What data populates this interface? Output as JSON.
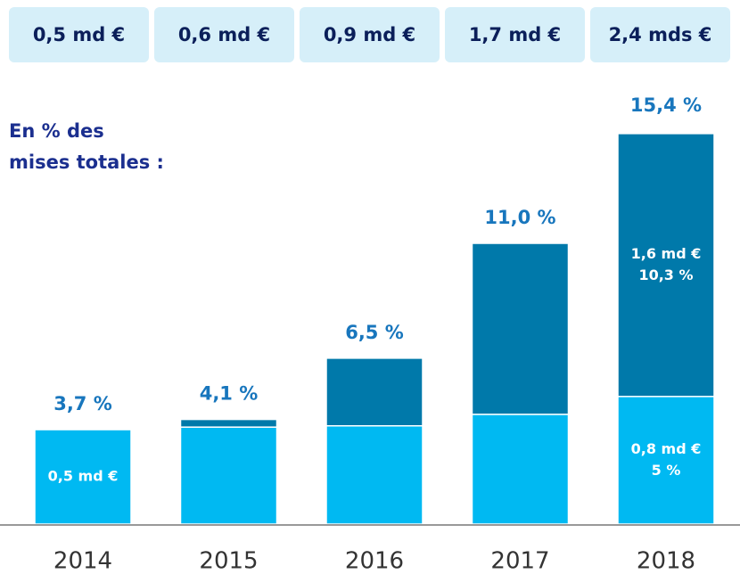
{
  "chart_data": {
    "type": "bar",
    "stacked": true,
    "annotations": [
      "En % des",
      "mises totales :"
    ],
    "amounts": [
      "0,5 md €",
      "0,6 md €",
      "0,9 md €",
      "1,7 md €",
      "2,4 mds €"
    ],
    "categories": [
      "2014",
      "2015",
      "2016",
      "2017",
      "2018"
    ],
    "totals": {
      "values": [
        3.7,
        4.1,
        6.5,
        11.0,
        15.4
      ],
      "value_labels": [
        "3,7 %",
        "4,1 %",
        "6,5 %",
        "11,0 %",
        "15,4 %"
      ]
    },
    "series": [
      {
        "color": "#00b9f2",
        "values": [
          3.7,
          3.8,
          3.85,
          4.3,
          5
        ],
        "segment_labels": [
          [
            "0,5 md €"
          ],
          null,
          null,
          null,
          [
            "0,8 md €",
            "5 %"
          ]
        ]
      },
      {
        "color": "#0079aa",
        "values": [
          null,
          0.3,
          2.65,
          6.7,
          10.3
        ],
        "segment_labels": [
          null,
          null,
          null,
          null,
          [
            "1,6 md €",
            "10,3 %"
          ]
        ]
      }
    ]
  }
}
